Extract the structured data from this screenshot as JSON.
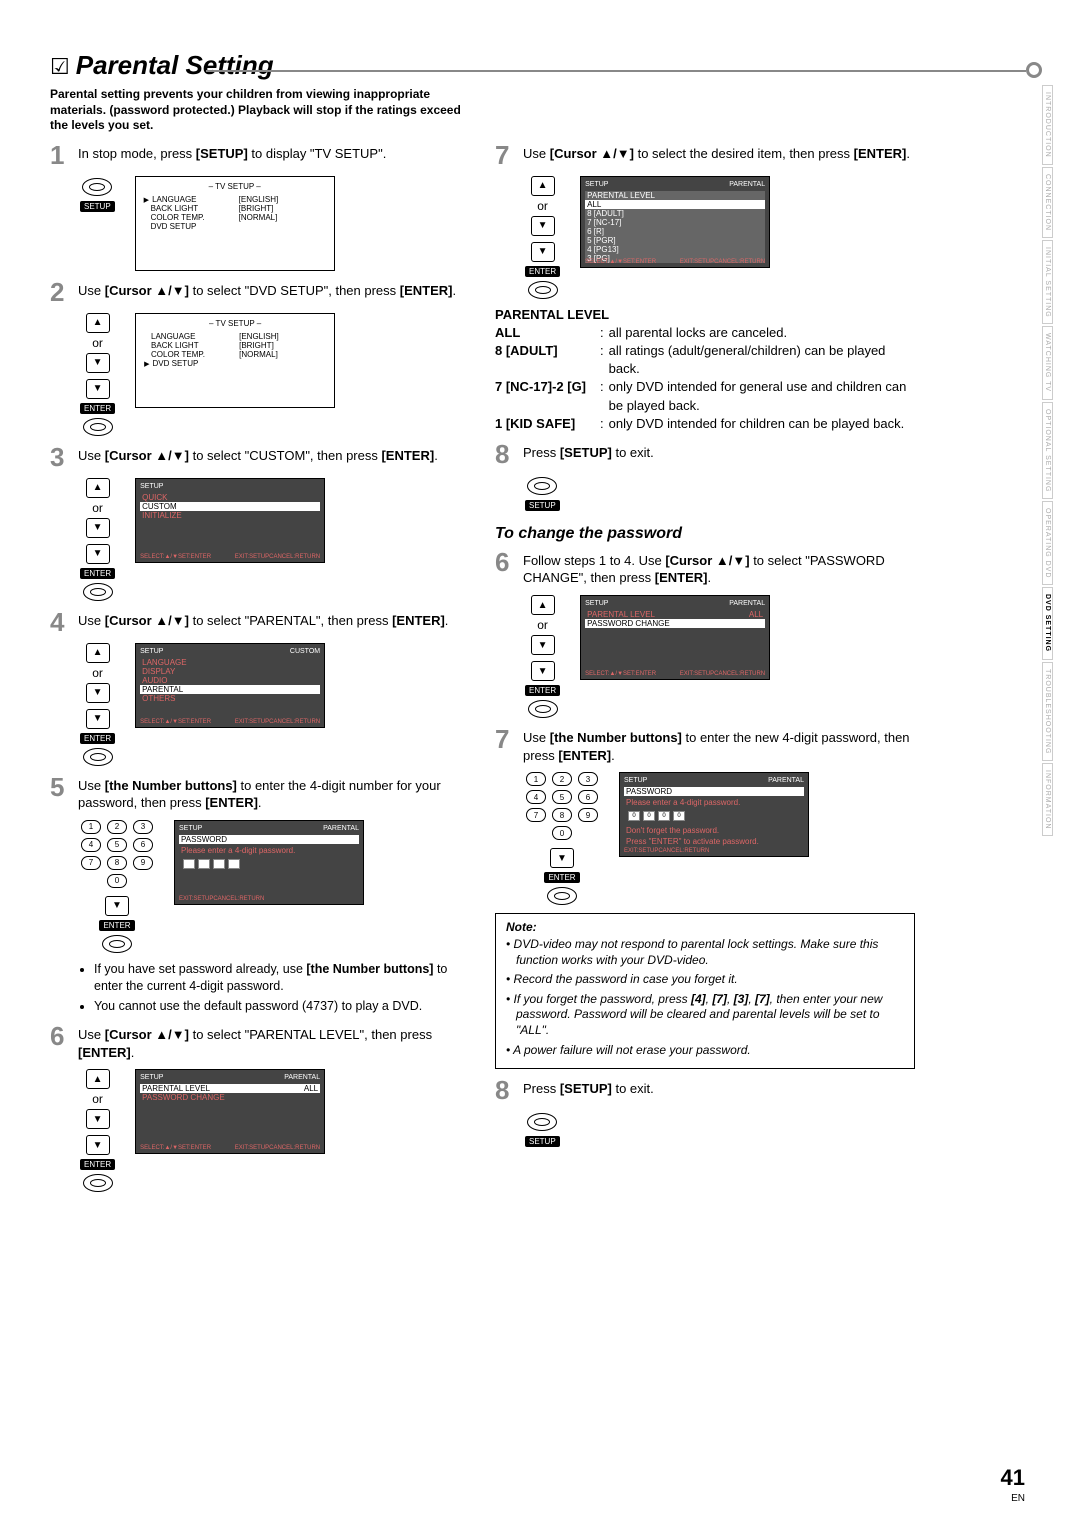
{
  "page_number": "41",
  "page_lang": "EN",
  "title": "Parental Setting",
  "intro": "Parental setting prevents your children from viewing inappropriate materials. (password protected.) Playback will stop if the ratings exceed the levels you set.",
  "side_tabs": [
    "INTRODUCTION",
    "CONNECTION",
    "INITIAL SETTING",
    "WATCHING TV",
    "OPTIONAL SETTING",
    "OPERATING DVD",
    "DVD SETTING",
    "TROUBLESHOOTING",
    "INFORMATION"
  ],
  "active_tab_index": 6,
  "ui_labels": {
    "or": "or",
    "enter": "ENTER",
    "setup": "SETUP"
  },
  "tv_setup_screen": {
    "title": "– TV SETUP –",
    "rows": [
      {
        "label": "LANGUAGE",
        "value": "[ENGLISH]",
        "pointer": true
      },
      {
        "label": "BACK LIGHT",
        "value": "[BRIGHT]"
      },
      {
        "label": "COLOR TEMP.",
        "value": "[NORMAL]"
      },
      {
        "label": "DVD SETUP",
        "value": ""
      }
    ]
  },
  "tv_setup_screen2": {
    "title": "– TV SETUP –",
    "rows": [
      {
        "label": "LANGUAGE",
        "value": "[ENGLISH]"
      },
      {
        "label": "BACK LIGHT",
        "value": "[BRIGHT]"
      },
      {
        "label": "COLOR TEMP.",
        "value": "[NORMAL]"
      },
      {
        "label": "DVD SETUP",
        "value": "",
        "pointer": true
      }
    ]
  },
  "setup_menu_screen": {
    "header_left": "SETUP",
    "items": [
      "QUICK",
      "CUSTOM",
      "INITIALIZE"
    ],
    "selected": "CUSTOM",
    "footer": [
      "SELECT:▲/▼",
      "SET:ENTER",
      "EXIT:SETUP",
      "CANCEL:RETURN"
    ]
  },
  "custom_screen": {
    "header_left": "SETUP",
    "header_right": "CUSTOM",
    "items": [
      "LANGUAGE",
      "DISPLAY",
      "AUDIO",
      "PARENTAL",
      "OTHERS"
    ],
    "selected": "PARENTAL"
  },
  "password_screen": {
    "header_left": "SETUP",
    "header_right": "PARENTAL",
    "section": "PASSWORD",
    "prompt": "Please enter a 4-digit password.",
    "footer": [
      "EXIT:SETUP",
      "CANCEL:RETURN"
    ]
  },
  "parental_screen": {
    "header_left": "SETUP",
    "header_right": "PARENTAL",
    "rows": [
      {
        "label": "PARENTAL LEVEL",
        "value": "ALL",
        "selected": true
      },
      {
        "label": "PASSWORD CHANGE",
        "value": ""
      }
    ]
  },
  "parental_level_list": {
    "header_left": "SETUP",
    "header_right": "PARENTAL",
    "section": "PARENTAL LEVEL",
    "items": [
      "ALL",
      "8 [ADULT]",
      "7 [NC-17]",
      "6 [R]",
      "5 [PGR]",
      "4 [PG13]",
      "3 [PG]"
    ],
    "selected": "ALL"
  },
  "password_change_screen": {
    "header_left": "SETUP",
    "header_right": "PARENTAL",
    "rows": [
      {
        "label": "PARENTAL LEVEL",
        "value": "ALL"
      },
      {
        "label": "PASSWORD CHANGE",
        "value": "",
        "selected": true
      }
    ]
  },
  "new_password_screen": {
    "header_left": "SETUP",
    "header_right": "PARENTAL",
    "section": "PASSWORD",
    "prompt": "Please enter a 4-digit password.",
    "digits": [
      "0",
      "0",
      "0",
      "0"
    ],
    "msg1": "Don't forget the password.",
    "msg2": "Press \"ENTER\" to activate password."
  },
  "steps": {
    "s1": "In stop mode, press [SETUP] to display \"TV SETUP\".",
    "s2": "Use [Cursor ▲/▼] to select \"DVD SETUP\", then press [ENTER].",
    "s3": "Use [Cursor ▲/▼] to select \"CUSTOM\", then press [ENTER].",
    "s4": "Use [Cursor ▲/▼] to select \"PARENTAL\", then press [ENTER].",
    "s5a": "Use [the Number buttons] to enter the 4-digit number for your password, then press [ENTER].",
    "s5_bullets": [
      "If you have set password already, use [the Number buttons] to enter the current 4-digit password.",
      "You cannot use the default password (4737) to play a DVD."
    ],
    "s6": "Use [Cursor ▲/▼] to select \"PARENTAL LEVEL\", then press [ENTER].",
    "s7": "Use [Cursor ▲/▼] to select the desired item, then press [ENTER].",
    "s8": "Press [SETUP] to exit."
  },
  "parental_level_heading": "PARENTAL LEVEL",
  "level_defs": [
    {
      "key": "ALL",
      "val": "all parental locks are canceled."
    },
    {
      "key": "8 [ADULT]",
      "val": "all ratings (adult/general/children) can be played back."
    },
    {
      "key": "7 [NC-17]-2 [G]",
      "val": "only DVD intended for general use and children can be played back."
    },
    {
      "key": "1 [KID SAFE]",
      "val": "only DVD intended for children can be played back."
    }
  ],
  "change_pw_heading": "To change the password",
  "change_pw": {
    "s6": "Follow steps 1 to 4. Use [Cursor ▲/▼] to select \"PASSWORD CHANGE\", then press [ENTER].",
    "s7": "Use [the Number buttons] to enter the new 4-digit password, then press [ENTER].",
    "s8": "Press [SETUP] to exit."
  },
  "note": {
    "title": "Note:",
    "items": [
      "DVD-video may not respond to parental lock settings. Make sure this function works with your DVD-video.",
      "Record the password in case you forget it.",
      "If you forget the password, press [4], [7], [3], [7], then enter your new password. Password will be cleared and parental levels will be set to \"ALL\".",
      "A power failure will not erase your password."
    ]
  }
}
